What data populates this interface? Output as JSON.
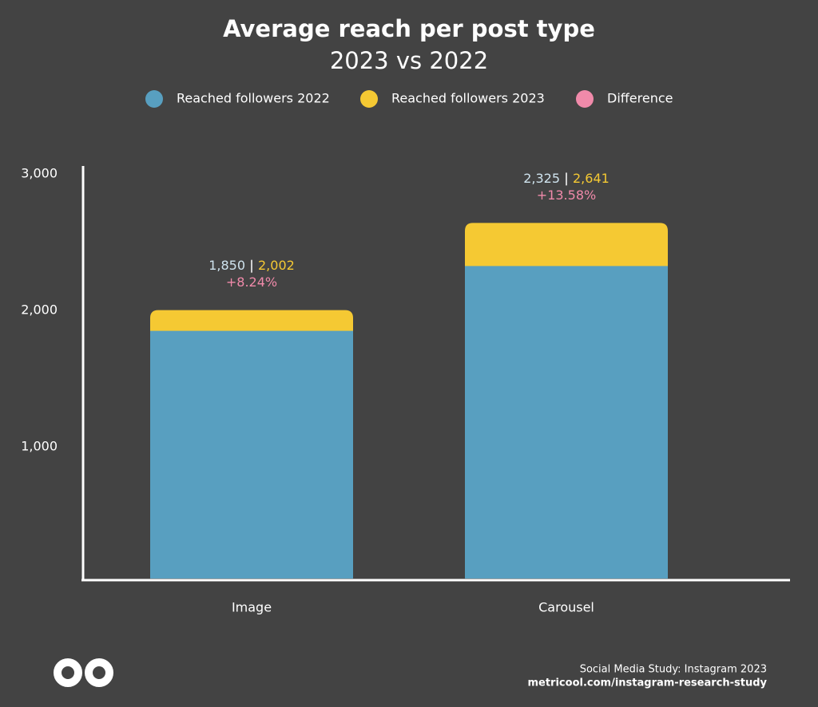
{
  "chart_data": {
    "type": "overlap_bar",
    "title": "Average reach per post type",
    "subtitle": "2023 vs 2022",
    "categories": [
      "Image",
      "Carousel"
    ],
    "series": [
      {
        "name": "Reached followers 2022",
        "color": "#589fc0",
        "values": [
          1850,
          2325
        ],
        "value_labels": [
          "1,850",
          "2,325"
        ]
      },
      {
        "name": "Reached followers 2023",
        "color": "#f5c933",
        "values": [
          2002,
          2641
        ],
        "value_labels": [
          "2,002",
          "2,641"
        ]
      },
      {
        "name": "Difference",
        "color": "#f08aaa",
        "values": [
          8.24,
          13.58
        ],
        "value_labels": [
          "+8.24%",
          "+13.58%"
        ]
      }
    ],
    "ylim": [
      0,
      3000
    ],
    "yticks": [
      {
        "value": 1000,
        "label": "1,000"
      },
      {
        "value": 2000,
        "label": "2,000"
      },
      {
        "value": 3000,
        "label": "3,000"
      }
    ],
    "source": "Social Media Study: Instagram 2023",
    "url": "metricool.com/instagram-research-study"
  }
}
